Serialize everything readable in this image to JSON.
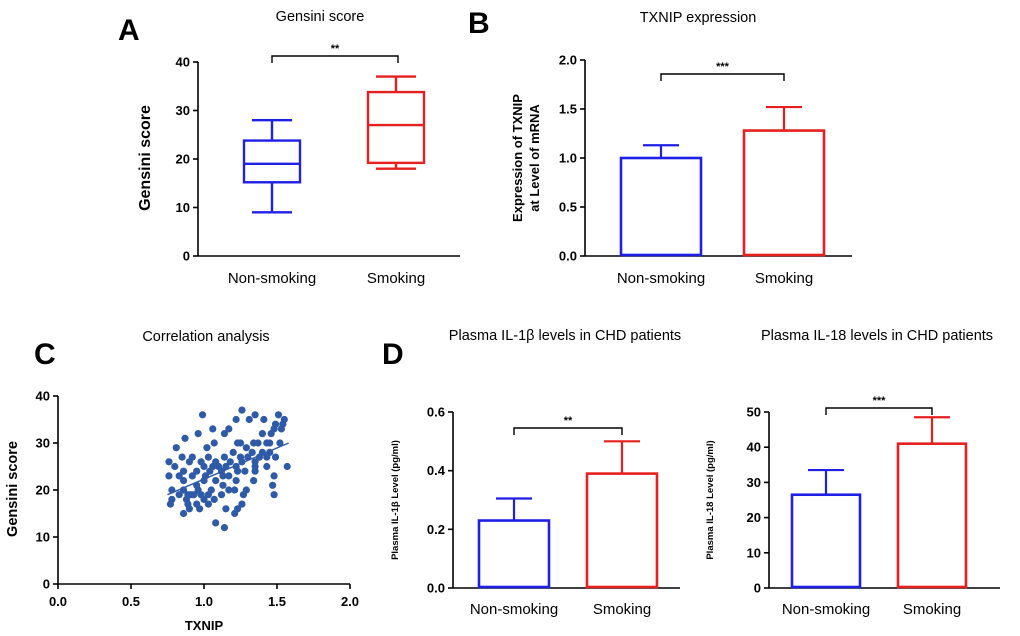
{
  "panels": {
    "A": {
      "letter": "A",
      "chart_data": {
        "type": "boxplot",
        "title": "Gensini score",
        "ylabel": "Gensini score",
        "categories": [
          "Non-smoking",
          "Smoking"
        ],
        "ylim": [
          0,
          40
        ],
        "yticks": [
          "0",
          "10",
          "20",
          "30",
          "40"
        ],
        "boxes": [
          {
            "name": "Non-smoking",
            "min": 9,
            "q1": 15.2,
            "median": 19,
            "q3": 23.8,
            "max": 28,
            "color": "#1f1fe6"
          },
          {
            "name": "Smoking",
            "min": 18,
            "q1": 19.2,
            "median": 27,
            "q3": 33.8,
            "max": 37,
            "color": "#e61f1f"
          }
        ],
        "significance": "**"
      }
    },
    "B": {
      "letter": "B",
      "chart_data": {
        "type": "bar",
        "title": "TXNIP expression",
        "ylabel_line1": "Expression of TXNIP",
        "ylabel_line2": "at Level of mRNA",
        "categories": [
          "Non-smoking",
          "Smoking"
        ],
        "values": [
          1.0,
          1.28
        ],
        "errors": [
          0.13,
          0.24
        ],
        "colors": [
          "#1f1fe6",
          "#e61f1f"
        ],
        "ylim": [
          0,
          2.0
        ],
        "yticks": [
          "0.0",
          "0.5",
          "1.0",
          "1.5",
          "2.0"
        ],
        "significance": "***"
      }
    },
    "C": {
      "letter": "C",
      "chart_data": {
        "type": "scatter",
        "title": "Correlation analysis",
        "xlabel": "TXNIP",
        "ylabel": "Gensini score",
        "xlim": [
          0,
          2.0
        ],
        "ylim": [
          0,
          40
        ],
        "xticks": [
          "0.0",
          "0.5",
          "1.0",
          "1.5",
          "2.0"
        ],
        "yticks": [
          "0",
          "10",
          "20",
          "30",
          "40"
        ],
        "color": "#2e5aa8",
        "trend": {
          "x0": 0.75,
          "y0": 19,
          "x1": 1.58,
          "y1": 30
        },
        "points": [
          [
            0.99,
            36
          ],
          [
            1.26,
            37
          ],
          [
            1.35,
            36
          ],
          [
            1.51,
            36
          ],
          [
            1.49,
            34
          ],
          [
            1.54,
            34
          ],
          [
            1.55,
            35
          ],
          [
            1.06,
            33
          ],
          [
            1.17,
            33
          ],
          [
            1.22,
            35
          ],
          [
            1.31,
            35
          ],
          [
            1.41,
            35
          ],
          [
            1.53,
            33
          ],
          [
            1.48,
            33
          ],
          [
            0.96,
            32
          ],
          [
            1.14,
            32
          ],
          [
            1.4,
            32
          ],
          [
            1.46,
            32
          ],
          [
            0.87,
            31
          ],
          [
            1.07,
            30
          ],
          [
            1.23,
            30
          ],
          [
            1.25,
            30
          ],
          [
            1.34,
            30
          ],
          [
            1.37,
            30
          ],
          [
            1.43,
            30
          ],
          [
            1.45,
            30
          ],
          [
            1.52,
            30
          ],
          [
            0.81,
            29
          ],
          [
            1.02,
            29
          ],
          [
            1.29,
            29
          ],
          [
            1.2,
            28
          ],
          [
            1.33,
            28
          ],
          [
            1.4,
            28
          ],
          [
            1.45,
            28
          ],
          [
            1.49,
            27
          ],
          [
            0.85,
            27
          ],
          [
            0.92,
            27
          ],
          [
            1.03,
            27
          ],
          [
            1.14,
            27
          ],
          [
            1.25,
            27
          ],
          [
            1.3,
            27
          ],
          [
            1.38,
            27
          ],
          [
            1.43,
            27
          ],
          [
            0.76,
            26
          ],
          [
            0.9,
            26
          ],
          [
            0.98,
            26
          ],
          [
            1.08,
            26
          ],
          [
            1.18,
            26
          ],
          [
            1.26,
            26
          ],
          [
            1.35,
            26
          ],
          [
            1.57,
            25
          ],
          [
            0.8,
            25
          ],
          [
            1.0,
            25
          ],
          [
            1.06,
            25
          ],
          [
            1.1,
            25
          ],
          [
            1.15,
            25
          ],
          [
            1.22,
            25
          ],
          [
            1.35,
            25
          ],
          [
            1.43,
            25
          ],
          [
            0.86,
            24
          ],
          [
            0.95,
            24
          ],
          [
            1.04,
            24
          ],
          [
            1.12,
            24
          ],
          [
            1.23,
            24
          ],
          [
            1.28,
            24
          ],
          [
            1.35,
            24
          ],
          [
            0.83,
            23
          ],
          [
            0.92,
            23
          ],
          [
            1.01,
            23
          ],
          [
            1.13,
            23
          ],
          [
            1.17,
            23
          ],
          [
            1.48,
            23
          ],
          [
            0.76,
            23
          ],
          [
            0.86,
            22
          ],
          [
            1.0,
            22
          ],
          [
            1.08,
            22
          ],
          [
            1.22,
            22
          ],
          [
            1.34,
            22
          ],
          [
            0.95,
            21
          ],
          [
            1.13,
            21
          ],
          [
            1.47,
            21
          ],
          [
            0.78,
            20
          ],
          [
            0.86,
            20
          ],
          [
            0.96,
            20
          ],
          [
            1.05,
            20
          ],
          [
            1.17,
            20
          ],
          [
            1.21,
            20
          ],
          [
            1.29,
            20
          ],
          [
            1.48,
            19
          ],
          [
            0.83,
            19
          ],
          [
            0.89,
            19
          ],
          [
            0.91,
            19
          ],
          [
            0.93,
            19
          ],
          [
            0.98,
            19
          ],
          [
            1.03,
            19
          ],
          [
            1.12,
            19
          ],
          [
            1.27,
            19
          ],
          [
            0.78,
            18
          ],
          [
            0.88,
            18
          ],
          [
            1.0,
            18
          ],
          [
            1.07,
            18
          ],
          [
            0.77,
            17
          ],
          [
            0.89,
            17
          ],
          [
            0.95,
            17
          ],
          [
            1.03,
            17
          ],
          [
            1.26,
            17
          ],
          [
            0.9,
            16
          ],
          [
            0.97,
            16
          ],
          [
            1.15,
            16
          ],
          [
            1.23,
            16
          ],
          [
            0.86,
            15
          ],
          [
            1.21,
            15
          ],
          [
            1.08,
            13
          ],
          [
            1.14,
            12
          ]
        ]
      }
    },
    "D": {
      "letter": "D",
      "charts": [
        {
          "type": "bar",
          "title": "Plasma IL-1β levels in CHD patients",
          "ylabel": "Plasma IL-1β Level (pg/ml)",
          "categories": [
            "Non-smoking",
            "Smoking"
          ],
          "values": [
            0.23,
            0.39
          ],
          "errors": [
            0.075,
            0.11
          ],
          "colors": [
            "#1f1fe6",
            "#e61f1f"
          ],
          "ylim": [
            0,
            0.6
          ],
          "yticks": [
            "0.0",
            "0.2",
            "0.4",
            "0.6"
          ],
          "significance": "**"
        },
        {
          "type": "bar",
          "title": "Plasma IL-18 levels in CHD patients",
          "ylabel": "Plasma IL-18 Level (pg/ml)",
          "categories": [
            "Non-smoking",
            "Smoking"
          ],
          "values": [
            26.5,
            41
          ],
          "errors": [
            7,
            7.5
          ],
          "colors": [
            "#1f1fe6",
            "#e61f1f"
          ],
          "ylim": [
            0,
            50
          ],
          "yticks": [
            "0",
            "10",
            "20",
            "30",
            "40",
            "50"
          ],
          "significance": "***"
        }
      ]
    }
  }
}
